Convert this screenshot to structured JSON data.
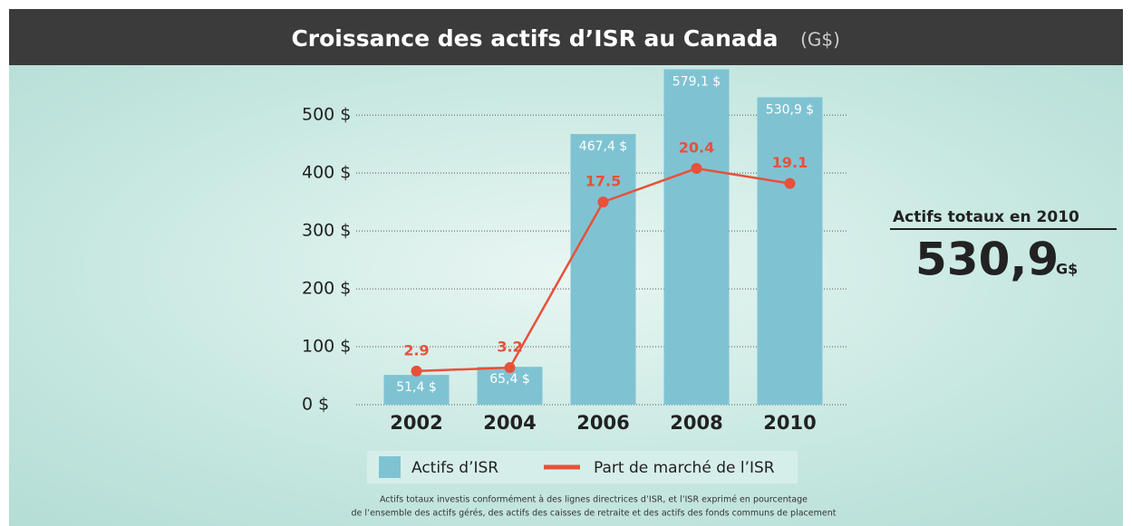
{
  "chart_data": {
    "type": "combo",
    "title": "Croissance des actifs d’ISR au Canada",
    "subtitle": "(G$)",
    "categories": [
      "2002",
      "2004",
      "2006",
      "2008",
      "2010"
    ],
    "series": [
      {
        "name": "Actifs d’ISR",
        "type": "bar",
        "color": "#7fc3d3",
        "values": [
          51.4,
          65.4,
          467.4,
          579.1,
          530.9
        ],
        "value_labels": [
          "51,4 $",
          "65,4 $",
          "467,4 $",
          "579,1 $",
          "530,9 $"
        ]
      },
      {
        "name": "Part de marché de l’ISR",
        "type": "line",
        "axis": "y2",
        "color": "#e8503a",
        "values": [
          2.9,
          3.2,
          17.5,
          20.4,
          19.1
        ]
      }
    ],
    "ylim": [
      0,
      580
    ],
    "yticks": [
      {
        "value": 0,
        "label": "0  $"
      },
      {
        "value": 100,
        "label": "100  $"
      },
      {
        "value": 200,
        "label": "200  $"
      },
      {
        "value": 300,
        "label": "300  $"
      },
      {
        "value": 400,
        "label": "400  $"
      },
      {
        "value": 500,
        "label": "500  $"
      }
    ],
    "y2lim": [
      0,
      29
    ],
    "grid": true,
    "legend": "bottom",
    "callout": {
      "label": "Actifs totaux en 2010",
      "value": "530,9",
      "unit": "G$"
    },
    "footnote": [
      "Actifs totaux investis conformément à des lignes directrices d’ISR, et l’ISR exprimé en pourcentage",
      "de l’ensemble des actifs gérés, des actifs des caisses de retraite et des actifs des fonds communs de placement"
    ]
  }
}
